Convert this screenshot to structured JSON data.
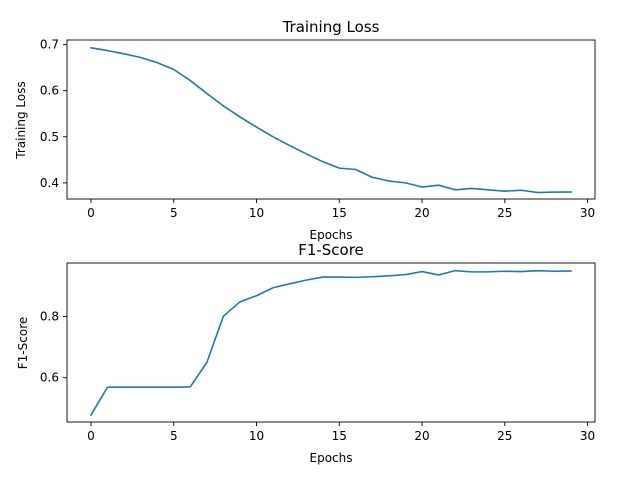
{
  "chart_data": [
    {
      "type": "line",
      "title": "Training Loss",
      "xlabel": "Epochs",
      "ylabel": "Training Loss",
      "xlim": [
        -1.45,
        30.45
      ],
      "ylim": [
        0.365,
        0.71
      ],
      "xticks": [
        0,
        5,
        10,
        15,
        20,
        25,
        30
      ],
      "yticks": [
        0.4,
        0.5,
        0.6,
        0.7
      ],
      "ytick_decimals": 1,
      "grid": false,
      "series": [
        {
          "color": "#1f77b4",
          "x": [
            0,
            1,
            2,
            3,
            4,
            5,
            6,
            7,
            8,
            9,
            10,
            11,
            12,
            13,
            14,
            15,
            16,
            17,
            18,
            19,
            20,
            21,
            22,
            23,
            24,
            25,
            26,
            27,
            28,
            29
          ],
          "y": [
            0.693,
            0.687,
            0.68,
            0.672,
            0.661,
            0.646,
            0.622,
            0.594,
            0.567,
            0.543,
            0.521,
            0.5,
            0.481,
            0.463,
            0.446,
            0.432,
            0.429,
            0.412,
            0.404,
            0.4,
            0.391,
            0.395,
            0.385,
            0.388,
            0.385,
            0.382,
            0.384,
            0.379,
            0.38,
            0.38
          ]
        }
      ]
    },
    {
      "type": "line",
      "title": "F1-Score",
      "xlabel": "Epochs",
      "ylabel": "F1-Score",
      "xlim": [
        -1.45,
        30.45
      ],
      "ylim": [
        0.455,
        0.975
      ],
      "xticks": [
        0,
        5,
        10,
        15,
        20,
        25,
        30
      ],
      "yticks": [
        0.6,
        0.8
      ],
      "ytick_decimals": 1,
      "grid": false,
      "series": [
        {
          "color": "#1f77b4",
          "x": [
            0,
            1,
            2,
            3,
            4,
            5,
            6,
            7,
            8,
            9,
            10,
            11,
            12,
            13,
            14,
            15,
            16,
            17,
            18,
            19,
            20,
            21,
            22,
            23,
            24,
            25,
            26,
            27,
            28,
            29
          ],
          "y": [
            0.478,
            0.569,
            0.569,
            0.569,
            0.569,
            0.569,
            0.57,
            0.65,
            0.801,
            0.848,
            0.868,
            0.894,
            0.907,
            0.919,
            0.929,
            0.929,
            0.928,
            0.93,
            0.933,
            0.937,
            0.947,
            0.936,
            0.95,
            0.946,
            0.946,
            0.948,
            0.947,
            0.95,
            0.948,
            0.949
          ]
        }
      ]
    }
  ]
}
